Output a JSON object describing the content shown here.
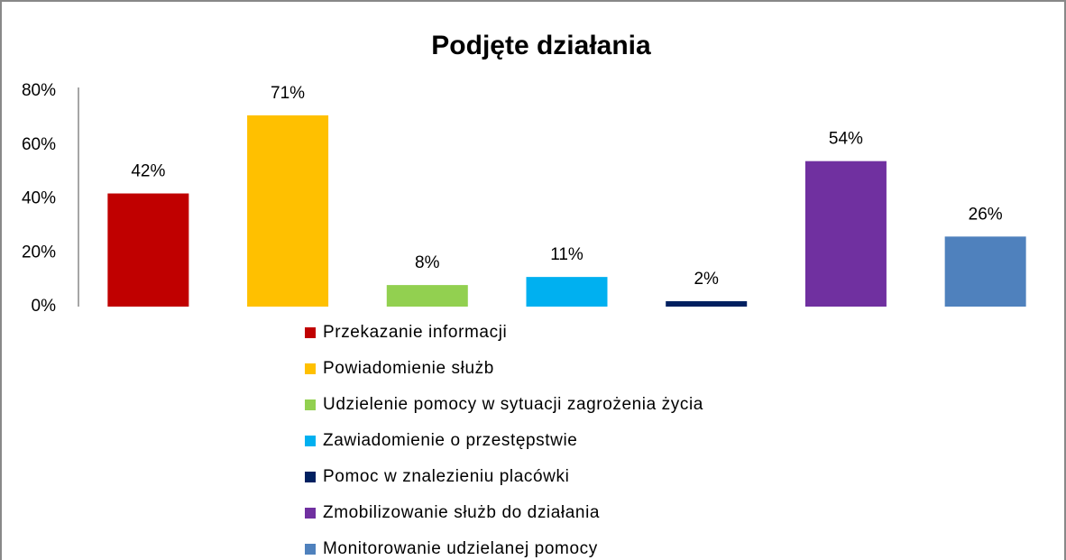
{
  "chart_data": {
    "type": "bar",
    "title": "Podjęte działania",
    "series": [
      {
        "name": "Przekazanie informacji",
        "color": "#c00000",
        "values": [
          42
        ],
        "value_labels": [
          "42%"
        ]
      },
      {
        "name": "Powiadomienie służb",
        "color": "#ffc000",
        "values": [
          71
        ],
        "value_labels": [
          "71%"
        ]
      },
      {
        "name": "Udzielenie pomocy w sytuacji zagrożenia życia",
        "color": "#92d050",
        "values": [
          8
        ],
        "value_labels": [
          "8%"
        ]
      },
      {
        "name": "Zawiadomienie o przestępstwie",
        "color": "#00b0f0",
        "values": [
          11
        ],
        "value_labels": [
          "11%"
        ]
      },
      {
        "name": "Pomoc w znalezieniu placówki",
        "color": "#002060",
        "values": [
          2
        ],
        "value_labels": [
          "2%"
        ]
      },
      {
        "name": "Zmobilizowanie służb do działania",
        "color": "#7030a0",
        "values": [
          54
        ],
        "value_labels": [
          "54%"
        ]
      },
      {
        "name": "Monitorowanie udzielanej pomocy",
        "color": "#4f81bd",
        "values": [
          26
        ],
        "value_labels": [
          "26%"
        ]
      }
    ],
    "ylim": [
      0,
      80
    ],
    "yticks": [
      {
        "value": 0,
        "label": "0%"
      },
      {
        "value": 20,
        "label": "20%"
      },
      {
        "value": 40,
        "label": "40%"
      },
      {
        "value": 60,
        "label": "60%"
      },
      {
        "value": 80,
        "label": "80%"
      }
    ],
    "grid": false,
    "legend": "bottom"
  }
}
